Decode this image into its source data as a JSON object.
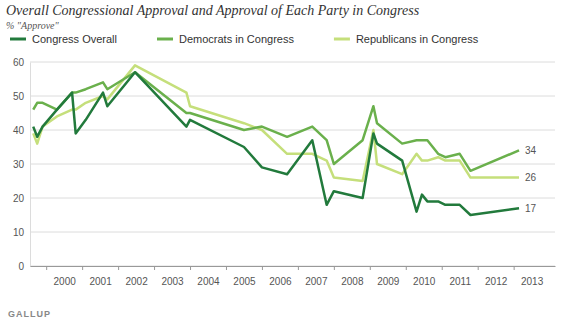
{
  "chart_data": {
    "type": "line",
    "title": "Overall Congressional Approval and Approval of Each Party in Congress",
    "subtitle": "% \"Approve\"",
    "source": "GALLUP",
    "x": [
      1999.64,
      1999.75,
      1999.9,
      2000.3,
      2000.72,
      2000.82,
      2001.1,
      2001.58,
      2001.7,
      2002.47,
      2003.9,
      2004.0,
      2005.5,
      2006.0,
      2006.7,
      2007.4,
      2007.8,
      2008.0,
      2008.8,
      2009.1,
      2009.2,
      2009.9,
      2010.3,
      2010.45,
      2010.6,
      2010.9,
      2011.1,
      2011.5,
      2011.8,
      2013.15
    ],
    "series": [
      {
        "name": "Congress Overall",
        "color": "#227a3c",
        "values": [
          41,
          38,
          41,
          46,
          51,
          39,
          43,
          51,
          47,
          57,
          41,
          43,
          35,
          29,
          27,
          37,
          18,
          22,
          20,
          39,
          36,
          31,
          16,
          21,
          19,
          19,
          18,
          18,
          15,
          17
        ]
      },
      {
        "name": "Democrats in Congress",
        "color": "#6ab04c",
        "values": [
          46,
          48,
          48,
          46,
          51,
          51,
          52,
          54,
          52,
          57,
          45,
          45,
          40,
          41,
          38,
          41,
          37,
          30,
          37,
          47,
          42,
          36,
          37,
          37,
          37,
          33,
          32,
          33,
          28,
          34
        ]
      },
      {
        "name": "Republicans in Congress",
        "color": "#c5df7b",
        "values": [
          39,
          36,
          41,
          44,
          46,
          46,
          48,
          50,
          49,
          59,
          51,
          47,
          42,
          40,
          33,
          33,
          31,
          26,
          25,
          40,
          30,
          27,
          33,
          31,
          31,
          32,
          31,
          31,
          26,
          26
        ]
      }
    ],
    "annotations": [
      {
        "text": "34",
        "x": 2013.15,
        "y": 34
      },
      {
        "text": "26",
        "x": 2013.15,
        "y": 26
      },
      {
        "text": "17",
        "x": 2013.15,
        "y": 17
      }
    ],
    "xlim": [
      1999.55,
      2014.15
    ],
    "xticks": [
      2000,
      2001,
      2002,
      2003,
      2004,
      2005,
      2006,
      2007,
      2008,
      2009,
      2010,
      2011,
      2012,
      2013
    ],
    "ylim": [
      0,
      60
    ],
    "yticks": [
      0,
      10,
      20,
      30,
      40,
      50,
      60
    ],
    "grid": true,
    "legend": "top"
  }
}
